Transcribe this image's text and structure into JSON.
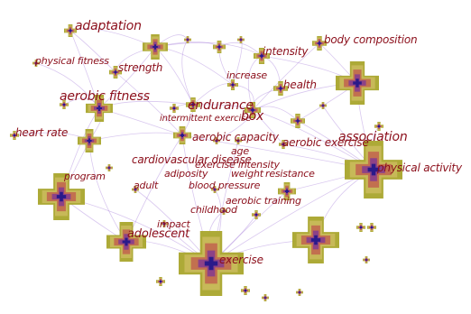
{
  "colors": {
    "background": "#ffffff",
    "label": "#8b0e1a",
    "link": "#9a6fd6",
    "cross_outer": "#a9a52c",
    "cross_mid": "#c8b95a",
    "cross_inner": "#c26b4f",
    "cross_core": "#8a3f8a",
    "cross_center": "#2a1a8a"
  },
  "keywords": [
    {
      "label": "adaptation"
    },
    {
      "label": "body composition"
    },
    {
      "label": "physical fitness"
    },
    {
      "label": "strength"
    },
    {
      "label": "intensity"
    },
    {
      "label": "increase"
    },
    {
      "label": "health"
    },
    {
      "label": "aerobic fitness"
    },
    {
      "label": "endurance"
    },
    {
      "label": "box"
    },
    {
      "label": "intermittent exercise"
    },
    {
      "label": "heart rate"
    },
    {
      "label": "aerobic capacity"
    },
    {
      "label": "association"
    },
    {
      "label": "aerobic exercise"
    },
    {
      "label": "age"
    },
    {
      "label": "cardiovascular disease"
    },
    {
      "label": "exercise intensity"
    },
    {
      "label": "physical activity"
    },
    {
      "label": "program"
    },
    {
      "label": "adiposity"
    },
    {
      "label": "weight"
    },
    {
      "label": "resistance"
    },
    {
      "label": "adult"
    },
    {
      "label": "blood pressure"
    },
    {
      "label": "aerobic training"
    },
    {
      "label": "childhood"
    },
    {
      "label": "impact"
    },
    {
      "label": "adolescent"
    },
    {
      "label": "exercise"
    }
  ]
}
